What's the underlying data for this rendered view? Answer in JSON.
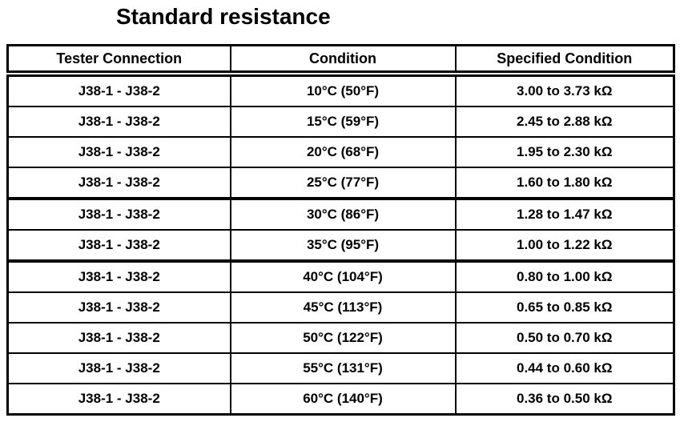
{
  "page": {
    "title": "Standard resistance"
  },
  "colors": {
    "text": "#000000",
    "border": "#000000",
    "background": "#ffffff"
  },
  "table": {
    "headers": [
      {
        "label": "Tester Connection"
      },
      {
        "label": "Condition"
      },
      {
        "label": "Specified Condition"
      }
    ],
    "rows": [
      {
        "tester_connection": "J38-1 - J38-2",
        "condition": "10°C (50°F)",
        "specified_condition": "3.00 to 3.73 kΩ",
        "thick_divider_below": false
      },
      {
        "tester_connection": "J38-1 - J38-2",
        "condition": "15°C (59°F)",
        "specified_condition": "2.45 to 2.88 kΩ",
        "thick_divider_below": false
      },
      {
        "tester_connection": "J38-1 - J38-2",
        "condition": "20°C (68°F)",
        "specified_condition": "1.95 to 2.30 kΩ",
        "thick_divider_below": false
      },
      {
        "tester_connection": "J38-1 - J38-2",
        "condition": "25°C (77°F)",
        "specified_condition": "1.60 to 1.80 kΩ",
        "thick_divider_below": true
      },
      {
        "tester_connection": "J38-1 - J38-2",
        "condition": "30°C (86°F)",
        "specified_condition": "1.28 to 1.47 kΩ",
        "thick_divider_below": false
      },
      {
        "tester_connection": "J38-1 - J38-2",
        "condition": "35°C (95°F)",
        "specified_condition": "1.00 to 1.22 kΩ",
        "thick_divider_below": true
      },
      {
        "tester_connection": "J38-1 - J38-2",
        "condition": "40°C (104°F)",
        "specified_condition": "0.80 to 1.00 kΩ",
        "thick_divider_below": false
      },
      {
        "tester_connection": "J38-1 - J38-2",
        "condition": "45°C (113°F)",
        "specified_condition": "0.65 to 0.85 kΩ",
        "thick_divider_below": false
      },
      {
        "tester_connection": "J38-1 - J38-2",
        "condition": "50°C (122°F)",
        "specified_condition": "0.50 to 0.70 kΩ",
        "thick_divider_below": false
      },
      {
        "tester_connection": "J38-1 - J38-2",
        "condition": "55°C (131°F)",
        "specified_condition": "0.44 to 0.60 kΩ",
        "thick_divider_below": false
      },
      {
        "tester_connection": "J38-1 - J38-2",
        "condition": "60°C (140°F)",
        "specified_condition": "0.36 to 0.50 kΩ",
        "thick_divider_below": false
      }
    ]
  }
}
